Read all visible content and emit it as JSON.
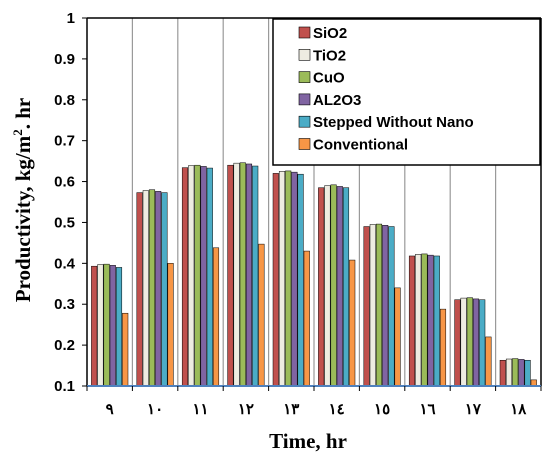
{
  "chart_data": {
    "type": "bar",
    "xlabel": "Time, hr",
    "ylabel_main": "Productivity, kg/m",
    "ylabel_sup": "2",
    "ylabel_tail": ". hr",
    "ylim": [
      0.1,
      1
    ],
    "yticks": [
      "0.1",
      "0.2",
      "0.3",
      "0.4",
      "0.5",
      "0.6",
      "0.7",
      "0.8",
      "0.9",
      "1"
    ],
    "grid": "vertical",
    "legend_position": "top-right",
    "categories": [
      "٩",
      "١٠",
      "١١",
      "١٢",
      "١٣",
      "١٤",
      "١٥",
      "١٦",
      "١٧",
      "١٨"
    ],
    "series": [
      {
        "name": "SiO2",
        "color": "#c0504d",
        "values": [
          0.393,
          0.573,
          0.634,
          0.64,
          0.62,
          0.585,
          0.49,
          0.418,
          0.311,
          0.163
        ]
      },
      {
        "name": "TiO2",
        "color": "#eeece1",
        "values": [
          0.397,
          0.578,
          0.639,
          0.645,
          0.625,
          0.59,
          0.495,
          0.422,
          0.315,
          0.166
        ]
      },
      {
        "name": "CuO",
        "color": "#9bbb59",
        "values": [
          0.398,
          0.58,
          0.64,
          0.646,
          0.626,
          0.592,
          0.496,
          0.423,
          0.316,
          0.167
        ]
      },
      {
        "name": "AL2O3",
        "color": "#8064a2",
        "values": [
          0.395,
          0.576,
          0.637,
          0.643,
          0.623,
          0.588,
          0.493,
          0.42,
          0.313,
          0.165
        ]
      },
      {
        "name": "Stepped Without Nano",
        "color": "#4bacc6",
        "values": [
          0.39,
          0.573,
          0.633,
          0.638,
          0.618,
          0.585,
          0.49,
          0.418,
          0.311,
          0.163
        ]
      },
      {
        "name": "Conventional",
        "color": "#f79646",
        "values": [
          0.278,
          0.4,
          0.438,
          0.447,
          0.43,
          0.408,
          0.34,
          0.288,
          0.22,
          0.115
        ]
      }
    ]
  }
}
